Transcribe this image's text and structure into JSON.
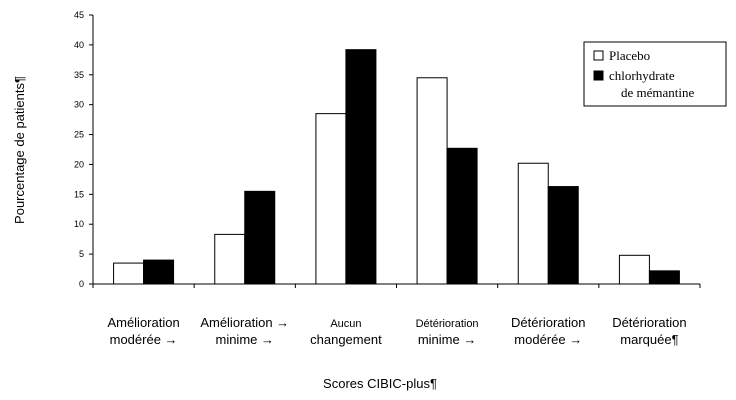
{
  "chart_data": {
    "type": "bar",
    "title": "",
    "xlabel": "Scores CIBIC-plus¶",
    "ylabel": "Pourcentage de patients¶",
    "ylim": [
      0,
      45
    ],
    "yticks": [
      0,
      5,
      10,
      15,
      20,
      25,
      30,
      35,
      40,
      45
    ],
    "categories": [
      [
        "Amélioration",
        "modérée →"
      ],
      [
        "Amélioration →",
        "minime →"
      ],
      [
        "Aucun",
        "changement"
      ],
      [
        "Détérioration",
        "minime →"
      ],
      [
        "Détérioration",
        "modérée →"
      ],
      [
        "Détérioration",
        "marquée¶"
      ]
    ],
    "series": [
      {
        "name": "Placebo",
        "color": "#ffffff",
        "values": [
          3.5,
          8.3,
          28.5,
          34.5,
          20.2,
          4.8
        ]
      },
      {
        "name": "chlorhydrate de mémantine",
        "color": "#000000",
        "values": [
          4.0,
          15.5,
          39.2,
          22.7,
          16.3,
          2.2
        ]
      }
    ],
    "legend": {
      "placement": "top-right",
      "entries": [
        {
          "label_lines": [
            "Placebo"
          ]
        },
        {
          "label_lines": [
            "chlorhydrate",
            "de mémantine"
          ]
        }
      ]
    },
    "grid": false
  }
}
